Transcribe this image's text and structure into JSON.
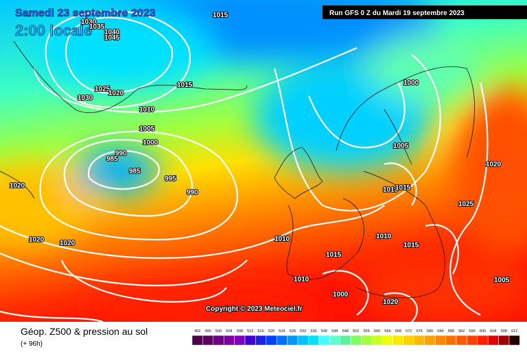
{
  "header": {
    "date": "Samedi 23 septembre 2023",
    "time": "2:00 locale",
    "run": "Run GFS 0 Z du Mardi 19 septembre 2023"
  },
  "copyright": "Copyright © 2023 Meteociel.fr",
  "footer": {
    "title": "Géop. Z500 & pression au sol",
    "lead": "(+ 96h)"
  },
  "legend": {
    "labels": [
      492,
      496,
      500,
      504,
      508,
      512,
      516,
      520,
      524,
      528,
      532,
      536,
      540,
      544,
      548,
      552,
      556,
      560,
      564,
      568,
      572,
      576,
      580,
      584,
      588,
      592,
      596,
      600,
      604,
      608,
      612
    ],
    "colors": [
      "#4b0047",
      "#5a005f",
      "#6a0080",
      "#7a00a0",
      "#8000c0",
      "#4000d0",
      "#2020e0",
      "#0040ff",
      "#0070ff",
      "#0098ff",
      "#00c0ff",
      "#00e0ff",
      "#40ffff",
      "#60ffd0",
      "#60f0a0",
      "#80ff60",
      "#a0ff40",
      "#c8ff20",
      "#f0ff00",
      "#ffe800",
      "#ffd000",
      "#ffb800",
      "#ffa000",
      "#ff8800",
      "#ff7000",
      "#ff5800",
      "#ff4000",
      "#ff2000",
      "#e00000",
      "#a00000",
      "#200000"
    ]
  },
  "isobar_labels": [
    "1015",
    "1030",
    "1035",
    "1040",
    "1045",
    "1025",
    "1020",
    "1030",
    "1015",
    "1000",
    "1010",
    "1005",
    "1000",
    "990",
    "985",
    "985",
    "995",
    "990",
    "1005",
    "1020",
    "1020",
    "1010",
    "1015",
    "1025",
    "1020",
    "1020",
    "1010",
    "1010",
    "1015",
    "1015",
    "1010",
    "1005",
    "1000",
    "1020"
  ]
}
